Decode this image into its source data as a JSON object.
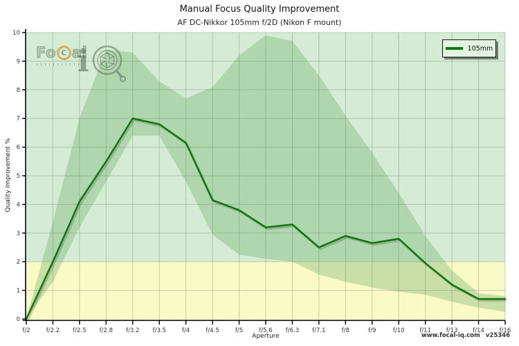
{
  "header": {
    "title": "Manual Focus Quality Improvement",
    "subtitle": "AF DC-Nikkor 105mm f/2D (Nikon F mount)"
  },
  "axes": {
    "y_title": "Quality Improvement %",
    "x_title": "Aperture"
  },
  "legend": {
    "label": "105mm"
  },
  "footer": {
    "site": "www.focal-iq.com",
    "version": "v25346"
  },
  "watermark": {
    "fo": "Fo",
    "c": "C",
    "al": "al",
    "i": "i"
  },
  "colors": {
    "plot_background_above_threshold": "#d3ecd3",
    "plot_background_below_threshold": "#fafac6",
    "band_fill": "rgba(105,170,100,0.33)",
    "line": "#127812",
    "grid": "rgba(100,125,100,0.35)",
    "axis": "#000000",
    "tick_text": "#333333"
  },
  "chart_data": {
    "type": "line",
    "title": "Manual Focus Quality Improvement",
    "subtitle": "AF DC-Nikkor 105mm f/2D (Nikon F mount)",
    "xlabel": "Aperture",
    "ylabel": "Quality Improvement %",
    "ylim": [
      0,
      10
    ],
    "y_tick_step": 1,
    "grid": true,
    "legend_position": "top-right",
    "threshold_value": 2,
    "categories": [
      "f/2",
      "f/2.2",
      "f/2.5",
      "f/2.8",
      "f/3.2",
      "f/3.5",
      "f/4",
      "f/4.5",
      "f/5",
      "f/5.6",
      "f/6.3",
      "f/7.1",
      "f/8",
      "f/9",
      "f/10",
      "f/11",
      "f/13",
      "f/14",
      "f/16"
    ],
    "series": [
      {
        "name": "105mm",
        "values": [
          0,
          2.0,
          4.1,
          5.5,
          7.0,
          6.8,
          6.15,
          4.15,
          3.8,
          3.2,
          3.3,
          2.5,
          2.9,
          2.65,
          2.8,
          1.95,
          1.2,
          0.7,
          0.7
        ]
      }
    ],
    "uncertainty_band": {
      "upper": [
        0,
        3.4,
        7.0,
        9.4,
        9.3,
        8.3,
        7.7,
        8.1,
        9.2,
        9.9,
        9.7,
        8.5,
        7.1,
        5.8,
        4.4,
        2.9,
        1.7,
        0.9,
        0.8
      ],
      "lower": [
        0,
        1.3,
        3.2,
        4.8,
        6.4,
        6.4,
        4.8,
        2.95,
        2.25,
        2.1,
        2.0,
        1.55,
        1.3,
        1.1,
        0.95,
        0.85,
        0.6,
        0.4,
        0.25
      ]
    }
  }
}
